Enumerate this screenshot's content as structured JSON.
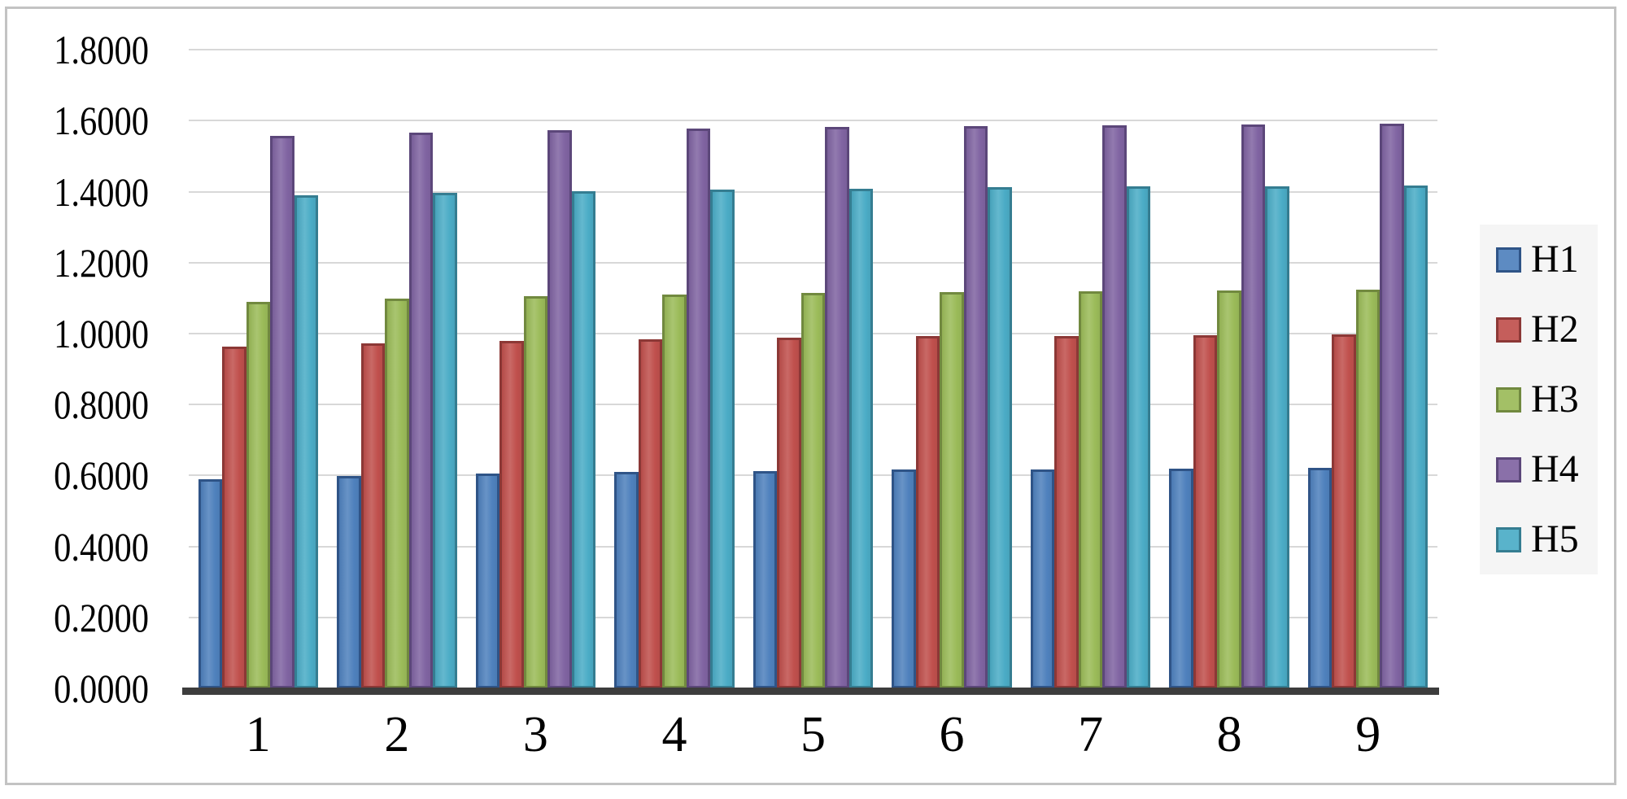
{
  "chart_data": {
    "type": "bar",
    "title": "",
    "xlabel": "",
    "ylabel": "",
    "categories": [
      "1",
      "2",
      "3",
      "4",
      "5",
      "6",
      "7",
      "8",
      "9"
    ],
    "series": [
      {
        "name": "H1",
        "color": "#4F81BD",
        "border": "#2F5487",
        "values": [
          0.589,
          0.599,
          0.605,
          0.61,
          0.613,
          0.616,
          0.618,
          0.6195,
          0.621
        ]
      },
      {
        "name": "H2",
        "color": "#C0504D",
        "border": "#8C3836",
        "values": [
          0.963,
          0.973,
          0.98,
          0.985,
          0.989,
          0.992,
          0.994,
          0.9955,
          0.997
        ]
      },
      {
        "name": "H3",
        "color": "#9BBB59",
        "border": "#71893F",
        "values": [
          1.089,
          1.098,
          1.105,
          1.11,
          1.114,
          1.117,
          1.119,
          1.121,
          1.123
        ]
      },
      {
        "name": "H4",
        "color": "#8064A2",
        "border": "#5C477A",
        "values": [
          1.557,
          1.567,
          1.574,
          1.579,
          1.583,
          1.586,
          1.588,
          1.59,
          1.592
        ]
      },
      {
        "name": "H5",
        "color": "#4BACC6",
        "border": "#357D91",
        "values": [
          1.389,
          1.396,
          1.401,
          1.406,
          1.409,
          1.412,
          1.414,
          1.416,
          1.418
        ]
      }
    ],
    "ylim": [
      0.0,
      1.8
    ],
    "ytick_step": 0.2,
    "ytick_labels": [
      "0.0000",
      "0.2000",
      "0.4000",
      "0.6000",
      "0.8000",
      "1.0000",
      "1.2000",
      "1.4000",
      "1.6000",
      "1.8000"
    ],
    "grid": true,
    "legend_position": "right"
  }
}
